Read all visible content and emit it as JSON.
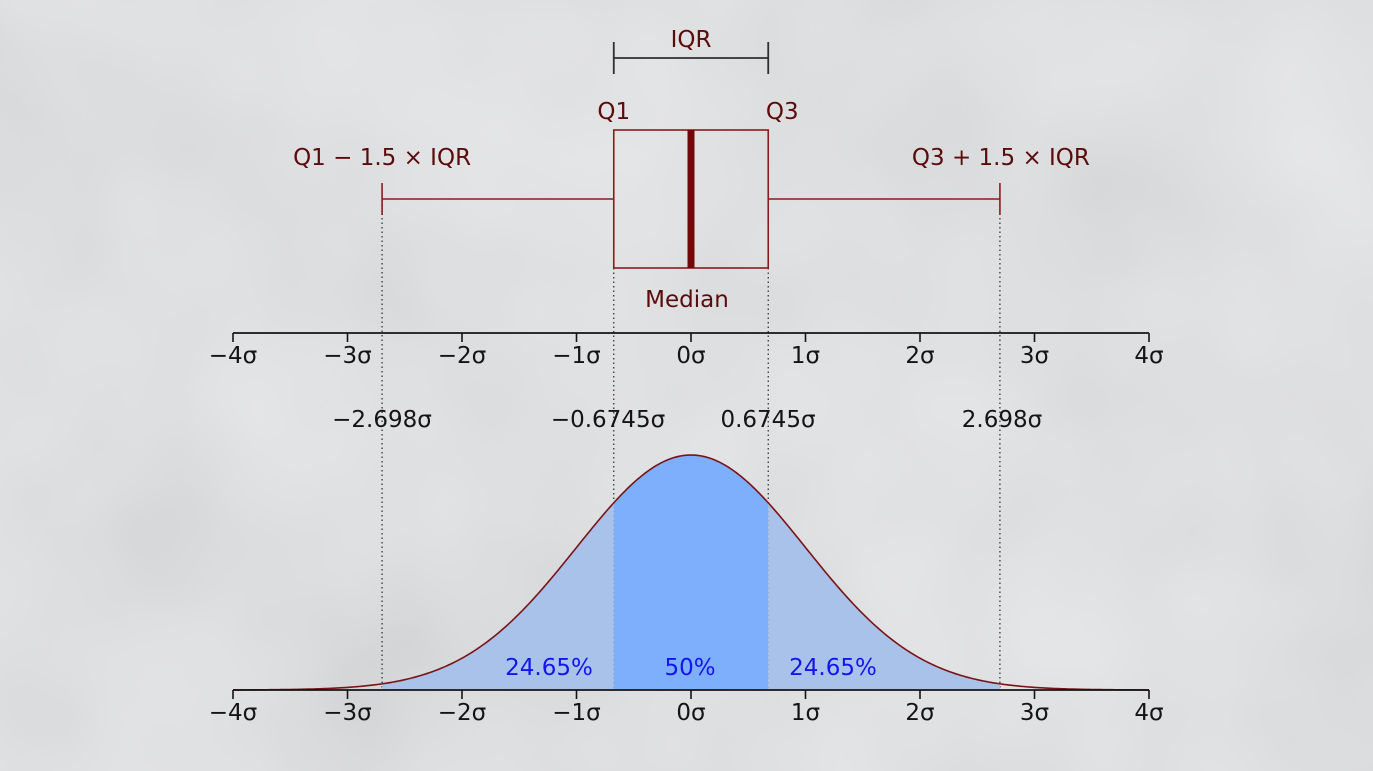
{
  "box_plot": {
    "iqr_label": "IQR",
    "q1_label": "Q1",
    "q3_label": "Q3",
    "median_label": "Median",
    "lower_fence_label": "Q1 − 1.5 × IQR",
    "upper_fence_label": "Q3 + 1.5 × IQR",
    "q1": -0.6745,
    "median": 0,
    "q3": 0.6745,
    "lower_fence": -2.698,
    "upper_fence": 2.698
  },
  "axis": {
    "range": [
      -4,
      4
    ],
    "ticks": [
      -4,
      -3,
      -2,
      -1,
      0,
      1,
      2,
      3,
      4
    ],
    "tick_labels": [
      "−4σ",
      "−3σ",
      "−2σ",
      "−1σ",
      "0σ",
      "1σ",
      "2σ",
      "3σ",
      "4σ"
    ]
  },
  "markers": [
    {
      "value": -2.698,
      "label": "−2.698σ"
    },
    {
      "value": -0.6745,
      "label": "−0.6745σ"
    },
    {
      "value": 0.6745,
      "label": "0.6745σ"
    },
    {
      "value": 2.698,
      "label": "2.698σ"
    }
  ],
  "areas": [
    {
      "from": -2.698,
      "to": -0.6745,
      "label": "24.65%"
    },
    {
      "from": -0.6745,
      "to": 0.6745,
      "label": "50%"
    },
    {
      "from": 0.6745,
      "to": 2.698,
      "label": "24.65%"
    }
  ],
  "colors": {
    "box": "#8b1c1c",
    "label": "#5a0b0b",
    "axis": "#141414",
    "tail_fill": "#a9c2ea",
    "center_fill": "#7eaffd",
    "percent_text": "#1414ee",
    "curve": "#7a1414"
  }
}
